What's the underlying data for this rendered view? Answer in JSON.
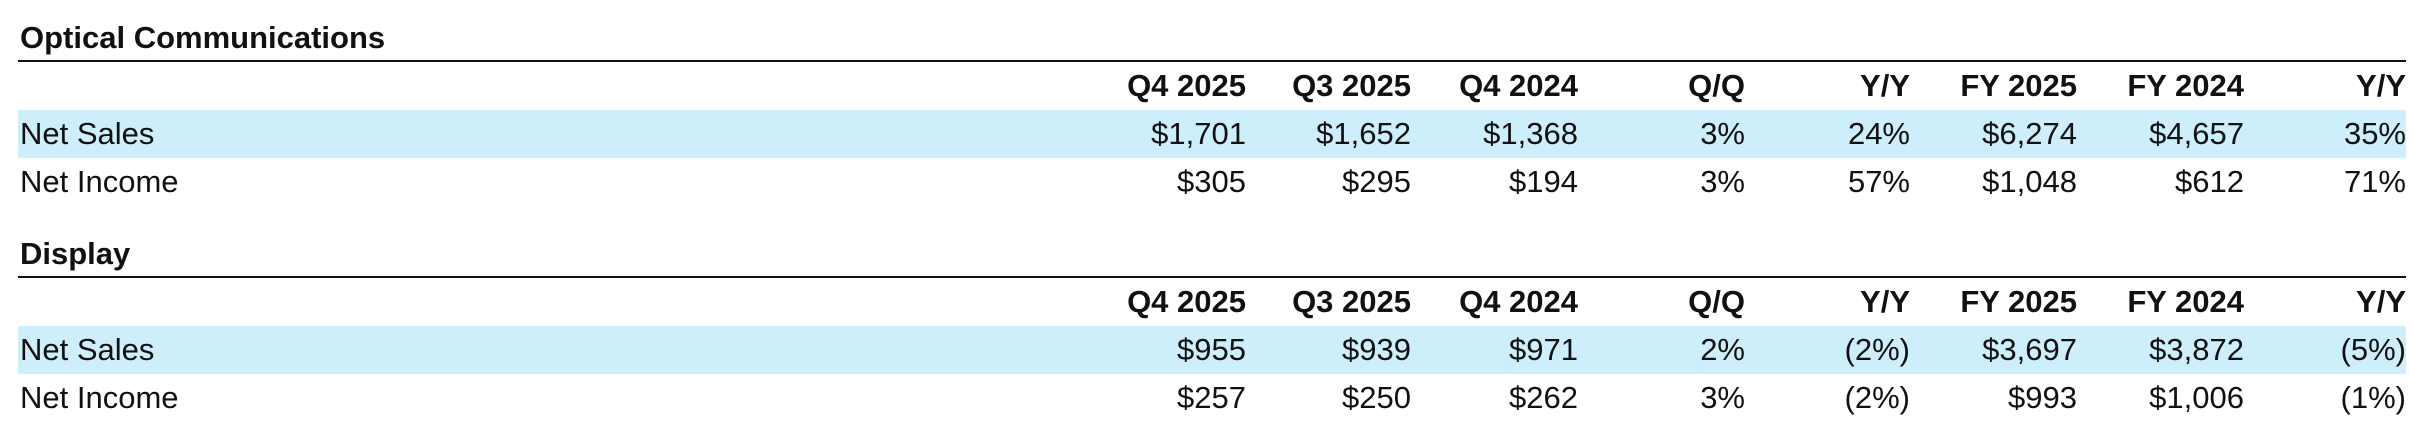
{
  "columns": [
    "Q4 2025",
    "Q3 2025",
    "Q4 2024",
    "Q/Q",
    "Y/Y",
    "FY 2025",
    "FY 2024",
    "Y/Y"
  ],
  "sections": [
    {
      "title": "Optical Communications",
      "rows": [
        {
          "label": "Net Sales",
          "values": [
            "$1,701",
            "$1,652",
            "$1,368",
            "3%",
            "24%",
            "$6,274",
            "$4,657",
            "35%"
          ]
        },
        {
          "label": "Net Income",
          "values": [
            "$305",
            "$295",
            "$194",
            "3%",
            "57%",
            "$1,048",
            "$612",
            "71%"
          ]
        }
      ]
    },
    {
      "title": "Display",
      "rows": [
        {
          "label": "Net Sales",
          "values": [
            "$955",
            "$939",
            "$971",
            "2%",
            "(2%)",
            "$3,697",
            "$3,872",
            "(5%)"
          ]
        },
        {
          "label": "Net Income",
          "values": [
            "$257",
            "$250",
            "$262",
            "3%",
            "(2%)",
            "$993",
            "$1,006",
            "(1%)"
          ]
        }
      ]
    }
  ],
  "colors": {
    "row_highlight": "#cdeefb",
    "text": "#111111",
    "rule": "#111111"
  }
}
